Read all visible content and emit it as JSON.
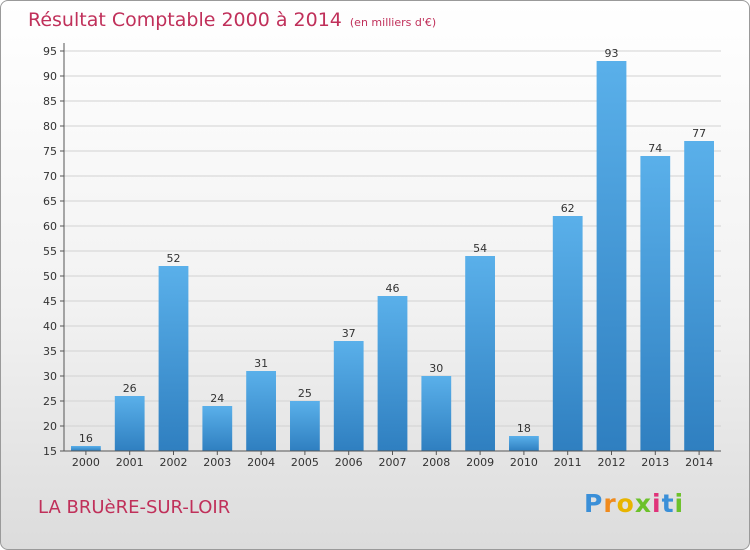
{
  "chart_data": {
    "type": "bar",
    "title": "Résultat Comptable 2000 à 2014",
    "unit_note": "(en milliers d'€)",
    "categories": [
      "2000",
      "2001",
      "2002",
      "2003",
      "2004",
      "2005",
      "2006",
      "2007",
      "2008",
      "2009",
      "2010",
      "2011",
      "2012",
      "2013",
      "2014"
    ],
    "values": [
      16,
      26,
      52,
      24,
      31,
      25,
      37,
      46,
      30,
      54,
      18,
      62,
      93,
      74,
      77
    ],
    "ylim": [
      15,
      95
    ],
    "yticks": [
      15,
      20,
      25,
      30,
      35,
      40,
      45,
      50,
      55,
      60,
      65,
      70,
      75,
      80,
      85,
      90,
      95
    ],
    "grid": true,
    "bar_color_light": "#5ab0ea",
    "bar_color_dark": "#2f7fc0",
    "grid_color": "#d2d2d2"
  },
  "footer": {
    "place": "LA BRUèRE-SUR-LOIR",
    "logo_letters": [
      "P",
      "r",
      "o",
      "x",
      "i",
      "t",
      "i"
    ],
    "logo_colors": [
      "#3a8fd8",
      "#f08a1c",
      "#e8b400",
      "#6cc12a",
      "#e0337a",
      "#3a8fd8",
      "#6cc12a"
    ]
  }
}
